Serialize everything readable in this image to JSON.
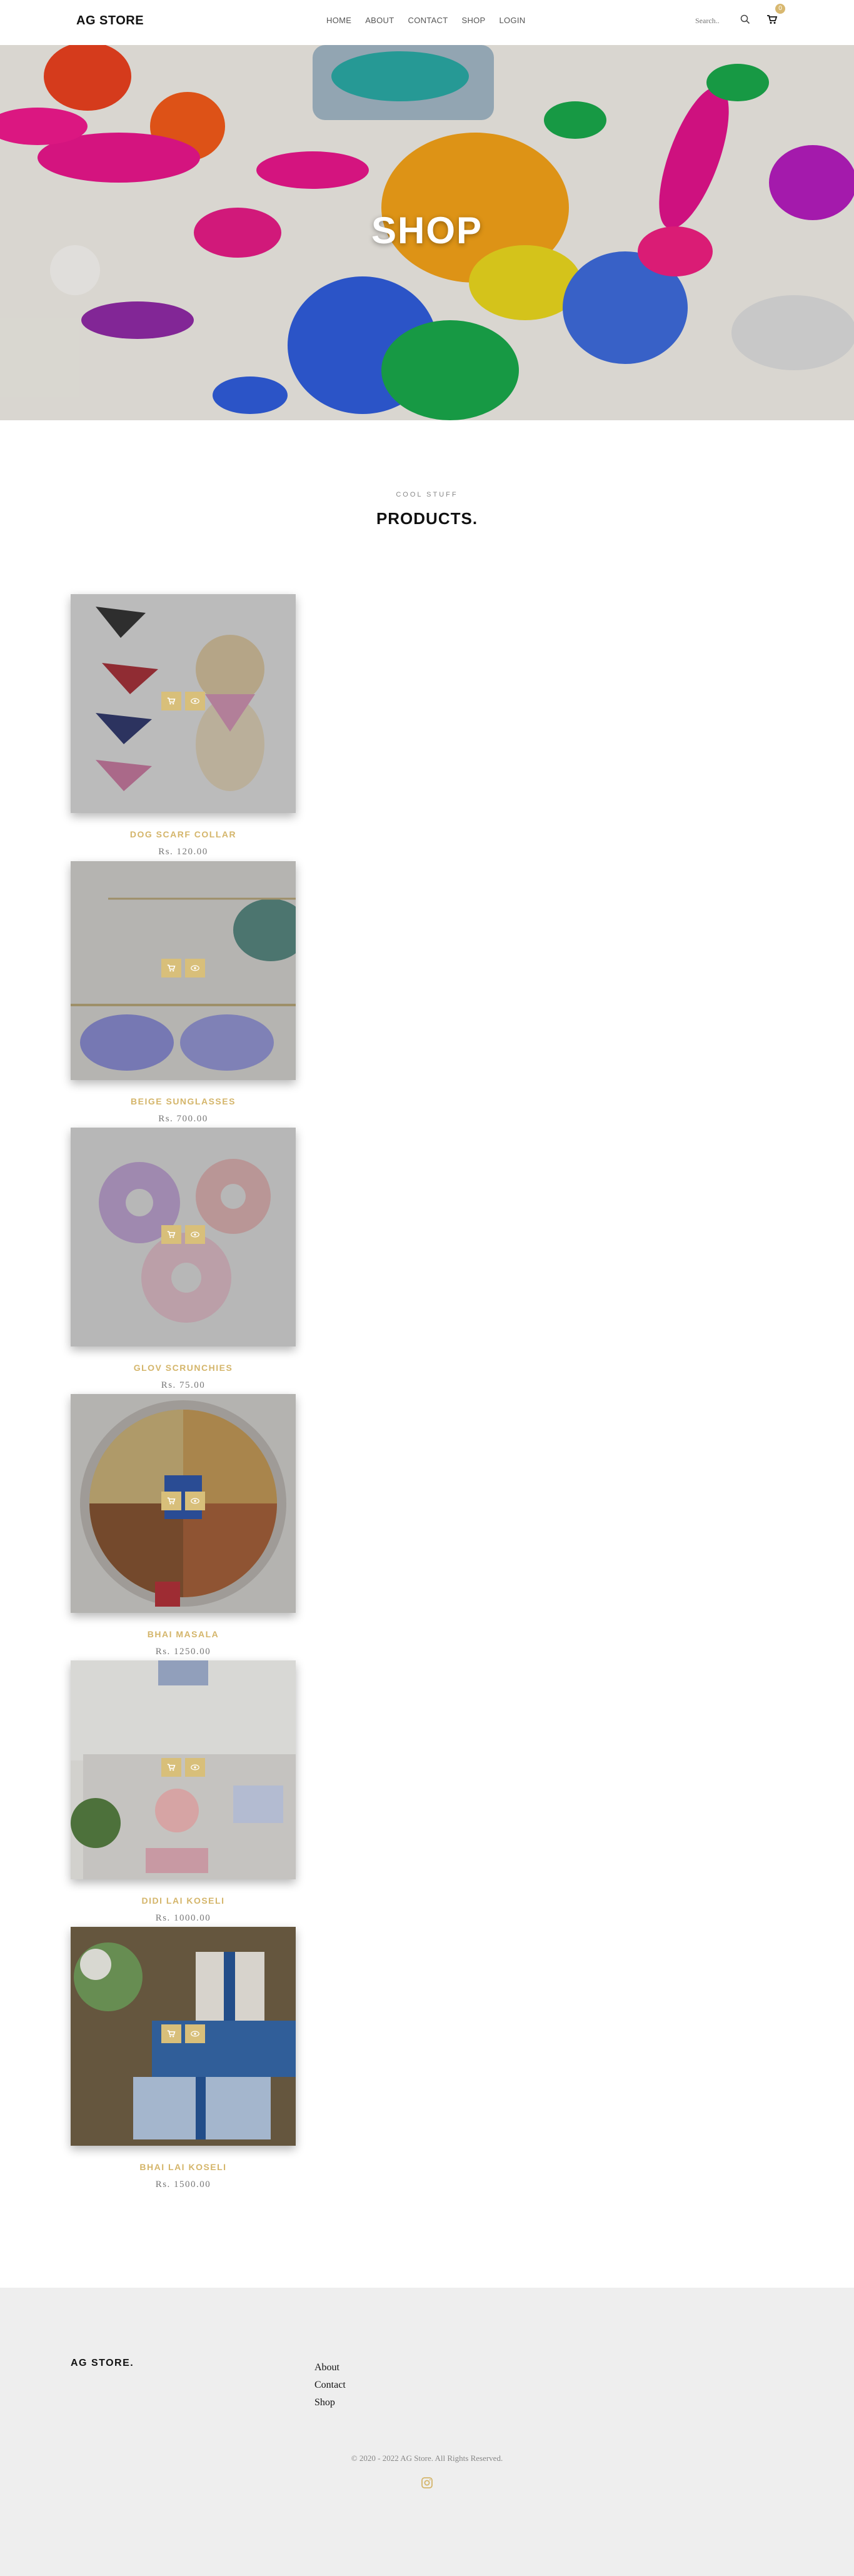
{
  "nav": {
    "brand": "AG STORE",
    "links": [
      "HOME",
      "ABOUT",
      "CONTACT",
      "SHOP",
      "LOGIN"
    ],
    "search_placeholder": "Search..",
    "cart_count": "0"
  },
  "hero": {
    "title": "SHOP"
  },
  "section": {
    "subtitle": "COOL STUFF",
    "title": "PRODUCTS."
  },
  "products": [
    {
      "name": "DOG SCARF COLLAR",
      "price": "Rs. 120.00"
    },
    {
      "name": "BEIGE SUNGLASSES",
      "price": "Rs. 700.00"
    },
    {
      "name": "GLOV SCRUNCHIES",
      "price": "Rs. 75.00"
    },
    {
      "name": "BHAI MASALA",
      "price": "Rs. 1250.00"
    },
    {
      "name": "DIDI LAI KOSELI",
      "price": "Rs. 1000.00"
    },
    {
      "name": "BHAI LAI KOSELI",
      "price": "Rs. 1500.00"
    }
  ],
  "footer": {
    "brand": "AG STORE.",
    "links": [
      "About",
      "Contact",
      "Shop"
    ],
    "copyright": "© 2020 - 2022 AG Store. All Rights Reserved."
  },
  "icons": {
    "search": "search-icon",
    "cart": "cart-icon",
    "add_to_cart": "cart-icon",
    "quick_view": "eye-icon",
    "social": "instagram-icon"
  },
  "colors": {
    "accent": "#d4b56a",
    "footer_bg": "#eeeeee"
  }
}
